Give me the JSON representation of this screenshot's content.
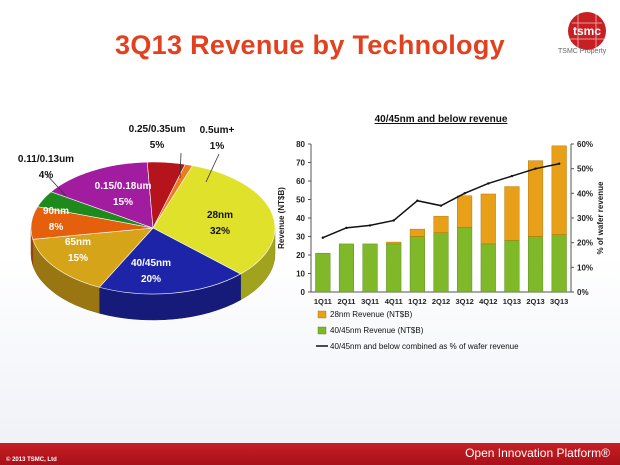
{
  "slide": {
    "title": "3Q13 Revenue by Technology",
    "logo_text": "tsmc",
    "logo_caption": "TSMC Property",
    "footer_left": "© 2013 TSMC, Ltd",
    "footer_right": "Open Innovation Platform®"
  },
  "colors": {
    "title": "#e2401f",
    "footer": "#b8141c",
    "rev28": "#e8a019",
    "rev40": "#7fb92a",
    "line": "#111111"
  },
  "chart_data": [
    {
      "type": "pie",
      "title": "",
      "slices": [
        {
          "name": "28nm",
          "label": "28nm",
          "pct_label": "32%",
          "value": 32,
          "color": "#dfe12a"
        },
        {
          "name": "40/45nm",
          "label": "40/45nm",
          "pct_label": "20%",
          "value": 20,
          "color": "#1e24a8"
        },
        {
          "name": "65nm",
          "label": "65nm",
          "pct_label": "15%",
          "value": 15,
          "color": "#d6a419"
        },
        {
          "name": "90nm",
          "label": "90nm",
          "pct_label": "8%",
          "value": 8,
          "color": "#e5600d"
        },
        {
          "name": "0.11/0.13um",
          "label": "0.11/0.13um",
          "pct_label": "4%",
          "value": 4,
          "color": "#1e8a1e"
        },
        {
          "name": "0.15/0.18um",
          "label": "0.15/0.18um",
          "pct_label": "15%",
          "value": 15,
          "color": "#a21ca0"
        },
        {
          "name": "0.25/0.35um",
          "label": "0.25/0.35um",
          "pct_label": "5%",
          "value": 5,
          "color": "#b5141c"
        },
        {
          "name": "0.5um+",
          "label": "0.5um+",
          "pct_label": "1%",
          "value": 1,
          "color": "#ef7a1c"
        }
      ]
    },
    {
      "type": "bar",
      "stacked": true,
      "title": "40/45nm and below revenue",
      "categories": [
        "1Q11",
        "2Q11",
        "3Q11",
        "4Q11",
        "1Q12",
        "2Q12",
        "3Q12",
        "4Q12",
        "1Q13",
        "2Q13",
        "3Q13"
      ],
      "series": [
        {
          "name": "40/45nm Revenue (NT$B)",
          "values": [
            21,
            26,
            26,
            26,
            30,
            32,
            35,
            26,
            28,
            30,
            31
          ],
          "color": "#7fb92a"
        },
        {
          "name": "28nm Revenue (NT$B)",
          "values": [
            0,
            0,
            0,
            1,
            4,
            9,
            17,
            27,
            29,
            41,
            48
          ],
          "color": "#e8a019"
        }
      ],
      "line_series": {
        "name": "40/45nm and below combined as % of wafer revenue",
        "values": [
          22,
          26,
          27,
          29,
          37,
          35,
          40,
          44,
          47,
          50,
          52
        ],
        "axis": "right"
      },
      "ylabel": "Revenue (NT$B)",
      "ylabel_right": "% of wafer revenue",
      "ylim": [
        0,
        80
      ],
      "yticks": [
        "0",
        "10",
        "20",
        "30",
        "40",
        "50",
        "60",
        "70",
        "80"
      ],
      "ylim_right": [
        0,
        60
      ],
      "yticks_right": [
        "0%",
        "10%",
        "20%",
        "30%",
        "40%",
        "50%",
        "60%"
      ],
      "legend": [
        "28nm Revenue (NT$B)",
        "40/45nm Revenue (NT$B)",
        "40/45nm and below combined as % of wafer revenue"
      ]
    }
  ]
}
